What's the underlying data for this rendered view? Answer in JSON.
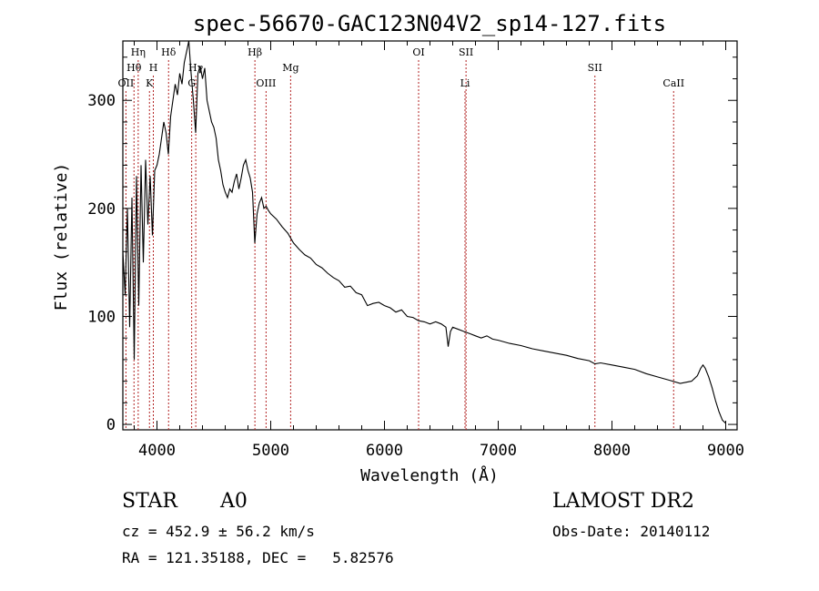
{
  "chart_data": {
    "type": "line",
    "title": "spec-56670-GAC123N04V2_sp14-127.fits",
    "xlabel": "Wavelength (Å)",
    "ylabel": "Flux (relative)",
    "xlim": [
      3700,
      9100
    ],
    "ylim": [
      -5,
      355
    ],
    "grid": false,
    "x_ticks": [
      4000,
      5000,
      6000,
      7000,
      8000,
      9000
    ],
    "y_ticks": [
      0,
      100,
      200,
      300
    ],
    "line_color": "#000000",
    "marker_color": "#b22222",
    "lines": [
      {
        "label": "OII",
        "wave": 3727,
        "row": 3
      },
      {
        "label": "Hθ",
        "wave": 3798,
        "row": 2
      },
      {
        "label": "Hη",
        "wave": 3835,
        "row": 1
      },
      {
        "label": "H",
        "wave": 3968,
        "row": 2
      },
      {
        "label": "K",
        "wave": 3934,
        "row": 3
      },
      {
        "label": "Hδ",
        "wave": 4102,
        "row": 1
      },
      {
        "label": "G",
        "wave": 4305,
        "row": 3
      },
      {
        "label": "Hγ",
        "wave": 4341,
        "row": 2
      },
      {
        "label": "Hβ",
        "wave": 4861,
        "row": 1
      },
      {
        "label": "OIII",
        "wave": 4959,
        "row": 3
      },
      {
        "label": "Mg",
        "wave": 5175,
        "row": 2
      },
      {
        "label": "OI",
        "wave": 6300,
        "row": 1
      },
      {
        "label": "SII",
        "wave": 6717,
        "row": 1
      },
      {
        "label": "Li",
        "wave": 6708,
        "row": 3
      },
      {
        "label": "SII",
        "wave": 7850,
        "row": 2
      },
      {
        "label": "CaII",
        "wave": 8542,
        "row": 3
      }
    ],
    "series": [
      {
        "values": [
          [
            3700,
            160
          ],
          [
            3720,
            120
          ],
          [
            3740,
            200
          ],
          [
            3760,
            90
          ],
          [
            3780,
            210
          ],
          [
            3800,
            60
          ],
          [
            3820,
            230
          ],
          [
            3840,
            110
          ],
          [
            3860,
            240
          ],
          [
            3880,
            150
          ],
          [
            3900,
            245
          ],
          [
            3920,
            185
          ],
          [
            3940,
            230
          ],
          [
            3960,
            175
          ],
          [
            3980,
            235
          ],
          [
            4000,
            240
          ],
          [
            4020,
            250
          ],
          [
            4040,
            265
          ],
          [
            4060,
            280
          ],
          [
            4080,
            270
          ],
          [
            4100,
            250
          ],
          [
            4120,
            285
          ],
          [
            4140,
            300
          ],
          [
            4160,
            315
          ],
          [
            4180,
            305
          ],
          [
            4200,
            325
          ],
          [
            4220,
            315
          ],
          [
            4240,
            335
          ],
          [
            4260,
            345
          ],
          [
            4280,
            355
          ],
          [
            4300,
            325
          ],
          [
            4320,
            300
          ],
          [
            4340,
            270
          ],
          [
            4360,
            325
          ],
          [
            4380,
            332
          ],
          [
            4400,
            320
          ],
          [
            4420,
            330
          ],
          [
            4440,
            300
          ],
          [
            4460,
            290
          ],
          [
            4480,
            280
          ],
          [
            4500,
            275
          ],
          [
            4520,
            265
          ],
          [
            4540,
            245
          ],
          [
            4560,
            235
          ],
          [
            4580,
            222
          ],
          [
            4600,
            215
          ],
          [
            4620,
            210
          ],
          [
            4640,
            218
          ],
          [
            4660,
            215
          ],
          [
            4680,
            225
          ],
          [
            4700,
            232
          ],
          [
            4720,
            218
          ],
          [
            4740,
            228
          ],
          [
            4760,
            240
          ],
          [
            4780,
            245
          ],
          [
            4800,
            235
          ],
          [
            4820,
            228
          ],
          [
            4840,
            215
          ],
          [
            4860,
            168
          ],
          [
            4880,
            195
          ],
          [
            4900,
            205
          ],
          [
            4920,
            210
          ],
          [
            4940,
            200
          ],
          [
            4960,
            202
          ],
          [
            4980,
            198
          ],
          [
            5000,
            195
          ],
          [
            5050,
            190
          ],
          [
            5100,
            183
          ],
          [
            5150,
            177
          ],
          [
            5200,
            168
          ],
          [
            5250,
            162
          ],
          [
            5300,
            157
          ],
          [
            5350,
            154
          ],
          [
            5400,
            148
          ],
          [
            5450,
            145
          ],
          [
            5500,
            140
          ],
          [
            5550,
            136
          ],
          [
            5600,
            133
          ],
          [
            5650,
            127
          ],
          [
            5700,
            128
          ],
          [
            5750,
            122
          ],
          [
            5800,
            120
          ],
          [
            5850,
            110
          ],
          [
            5900,
            112
          ],
          [
            5950,
            113
          ],
          [
            6000,
            110
          ],
          [
            6050,
            108
          ],
          [
            6100,
            104
          ],
          [
            6150,
            106
          ],
          [
            6200,
            100
          ],
          [
            6250,
            99
          ],
          [
            6300,
            96
          ],
          [
            6350,
            95
          ],
          [
            6400,
            93
          ],
          [
            6450,
            95
          ],
          [
            6500,
            93
          ],
          [
            6540,
            90
          ],
          [
            6560,
            72
          ],
          [
            6580,
            86
          ],
          [
            6600,
            90
          ],
          [
            6650,
            88
          ],
          [
            6700,
            86
          ],
          [
            6750,
            84
          ],
          [
            6800,
            82
          ],
          [
            6850,
            80
          ],
          [
            6900,
            82
          ],
          [
            6950,
            79
          ],
          [
            7000,
            78
          ],
          [
            7100,
            75
          ],
          [
            7200,
            73
          ],
          [
            7300,
            70
          ],
          [
            7400,
            68
          ],
          [
            7500,
            66
          ],
          [
            7600,
            64
          ],
          [
            7700,
            61
          ],
          [
            7800,
            59
          ],
          [
            7850,
            56
          ],
          [
            7900,
            57
          ],
          [
            8000,
            55
          ],
          [
            8100,
            53
          ],
          [
            8200,
            51
          ],
          [
            8300,
            47
          ],
          [
            8400,
            44
          ],
          [
            8500,
            41
          ],
          [
            8600,
            38
          ],
          [
            8700,
            40
          ],
          [
            8750,
            45
          ],
          [
            8780,
            52
          ],
          [
            8800,
            55
          ],
          [
            8820,
            52
          ],
          [
            8850,
            44
          ],
          [
            8880,
            34
          ],
          [
            8910,
            22
          ],
          [
            8940,
            12
          ],
          [
            8970,
            4
          ],
          [
            9000,
            1
          ]
        ]
      }
    ]
  },
  "footer": {
    "object_class": "STAR",
    "subclass": "A0",
    "survey": "LAMOST DR2",
    "redshift_text": "cz = 452.9 ± 56.2 km/s",
    "obs_date": "Obs-Date: 20140112",
    "coords": "RA = 121.35188, DEC =   5.82576"
  }
}
